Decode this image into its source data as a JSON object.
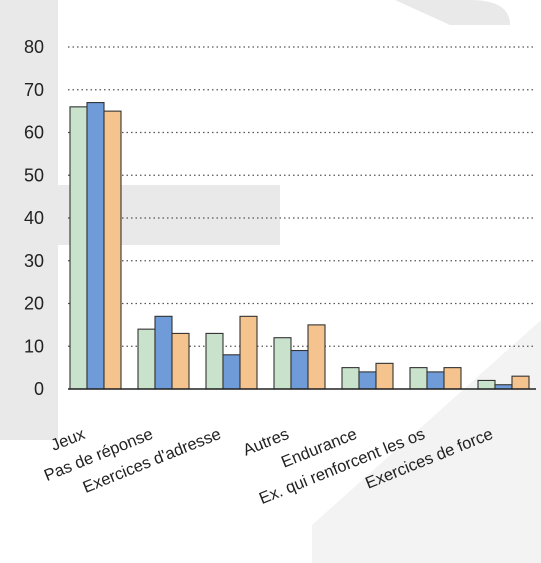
{
  "chart_data": {
    "type": "bar",
    "categories": [
      "Jeux",
      "Pas de réponse",
      "Exercices d'adresse",
      "Autres",
      "Endurance",
      "Ex. qui renforcent les os",
      "Exercices de force"
    ],
    "series": [
      {
        "values": [
          66,
          14,
          13,
          12,
          5,
          5,
          2
        ],
        "color": "#c8e2cc"
      },
      {
        "values": [
          67,
          17,
          8,
          9,
          4,
          4,
          1
        ],
        "color": "#6f9bd9"
      },
      {
        "values": [
          65,
          13,
          17,
          15,
          6,
          5,
          3
        ],
        "color": "#f5c48e"
      }
    ],
    "yticks": [
      0,
      10,
      20,
      30,
      40,
      50,
      60,
      70,
      80
    ],
    "ylim": [
      0,
      80
    ],
    "grid": true,
    "legend": "none",
    "title": "",
    "xlabel": "",
    "ylabel": ""
  }
}
